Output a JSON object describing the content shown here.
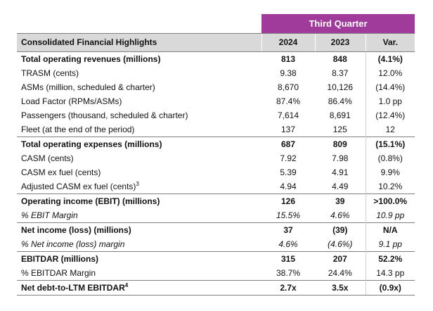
{
  "header": {
    "period": "Third Quarter",
    "title": "Consolidated Financial Highlights",
    "col_2024": "2024",
    "col_2023": "2023",
    "col_var": "Var."
  },
  "rows": [
    {
      "label": "Total operating revenues (millions)",
      "v2024": "813",
      "v2023": "848",
      "var": "(4.1%)"
    },
    {
      "label": "TRASM (cents)",
      "v2024": "9.38",
      "v2023": "8.37",
      "var": "12.0%"
    },
    {
      "label": "ASMs (million, scheduled & charter)",
      "v2024": "8,670",
      "v2023": "10,126",
      "var": "(14.4%)"
    },
    {
      "label": "Load Factor (RPMs/ASMs)",
      "v2024": "87.4%",
      "v2023": "86.4%",
      "var": "1.0 pp"
    },
    {
      "label": "Passengers (thousand, scheduled & charter)",
      "v2024": "7,614",
      "v2023": "8,691",
      "var": "(12.4%)"
    },
    {
      "label": "Fleet (at the end of the period)",
      "v2024": "137",
      "v2023": "125",
      "var": "12"
    },
    {
      "label": "Total operating expenses (millions)",
      "v2024": "687",
      "v2023": "809",
      "var": "(15.1%)"
    },
    {
      "label": "CASM (cents)",
      "v2024": "7.92",
      "v2023": "7.98",
      "var": "(0.8%)"
    },
    {
      "label": "CASM ex fuel (cents)",
      "v2024": "5.39",
      "v2023": "4.91",
      "var": "9.9%"
    },
    {
      "label": "Adjusted CASM ex fuel (cents)",
      "sup": "3",
      "v2024": "4.94",
      "v2023": "4.49",
      "var": "10.2%"
    },
    {
      "label": "Operating income (EBIT) (millions)",
      "v2024": "126",
      "v2023": "39",
      "var": ">100.0%"
    },
    {
      "label": "% EBIT Margin",
      "v2024": "15.5%",
      "v2023": "4.6%",
      "var": "10.9 pp"
    },
    {
      "label": "Net income (loss) (millions)",
      "v2024": "37",
      "v2023": "(39)",
      "var": "N/A"
    },
    {
      "label": "% Net income (loss) margin",
      "v2024": "4.6%",
      "v2023": "(4.6%)",
      "var": "9.1 pp"
    },
    {
      "label": "EBITDAR (millions)",
      "v2024": "315",
      "v2023": "207",
      "var": "52.2%"
    },
    {
      "label": "% EBITDAR Margin",
      "v2024": "38.7%",
      "v2023": "24.4%",
      "var": "14.3 pp"
    },
    {
      "label": "Net debt-to-LTM EBITDAR",
      "sup": "4",
      "v2024": "2.7x",
      "v2023": "3.5x",
      "var": "(0.9x)"
    }
  ],
  "colors": {
    "accent": "#a03a9b",
    "header_bg": "#d9d9d9"
  }
}
